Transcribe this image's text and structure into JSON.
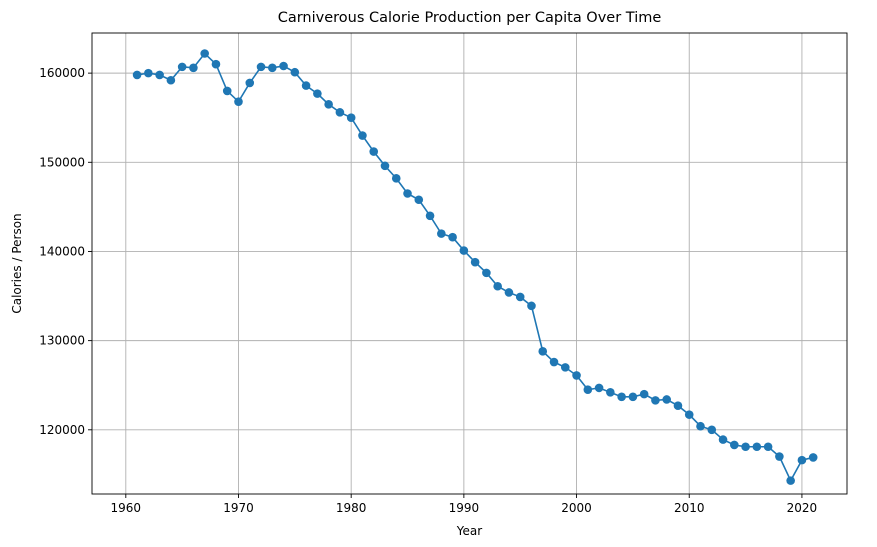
{
  "chart_data": {
    "type": "line",
    "title": "Carniverous Calorie Production per Capita Over Time",
    "xlabel": "Year",
    "ylabel": "Calories / Person",
    "xlim": [
      1957.0,
      2024.0
    ],
    "ylim": [
      112800,
      164500
    ],
    "xticks": [
      1960,
      1970,
      1980,
      1990,
      2000,
      2010,
      2020
    ],
    "yticks": [
      120000,
      130000,
      140000,
      150000,
      160000
    ],
    "grid": true,
    "marker": "circle",
    "color": "#1f77b4",
    "series": [
      {
        "x": [
          1961,
          1962,
          1963,
          1964,
          1965,
          1966,
          1967,
          1968,
          1969,
          1970,
          1971,
          1972,
          1973,
          1974,
          1975,
          1976,
          1977,
          1978,
          1979,
          1980,
          1981,
          1982,
          1983,
          1984,
          1985,
          1986,
          1987,
          1988,
          1989,
          1990,
          1991,
          1992,
          1993,
          1994,
          1995,
          1996,
          1997,
          1998,
          1999,
          2000,
          2001,
          2002,
          2003,
          2004,
          2005,
          2006,
          2007,
          2008,
          2009,
          2010,
          2011,
          2012,
          2013,
          2014,
          2015,
          2016,
          2017,
          2018,
          2019,
          2020,
          2021
        ],
        "y": [
          159800,
          160000,
          159800,
          159200,
          160700,
          160600,
          162200,
          161000,
          158000,
          156800,
          158900,
          160700,
          160600,
          160800,
          160100,
          158600,
          157700,
          156500,
          155600,
          155000,
          153000,
          151200,
          149600,
          148200,
          146500,
          145800,
          144000,
          142000,
          141600,
          140100,
          138800,
          137600,
          136100,
          135400,
          134900,
          133900,
          128800,
          127600,
          127000,
          126100,
          124500,
          124700,
          124200,
          123700,
          123700,
          124000,
          123300,
          123400,
          122700,
          121700,
          120400,
          120000,
          118900,
          118300,
          118100,
          118100,
          118100,
          117000,
          114300,
          116600,
          116900
        ]
      }
    ]
  }
}
